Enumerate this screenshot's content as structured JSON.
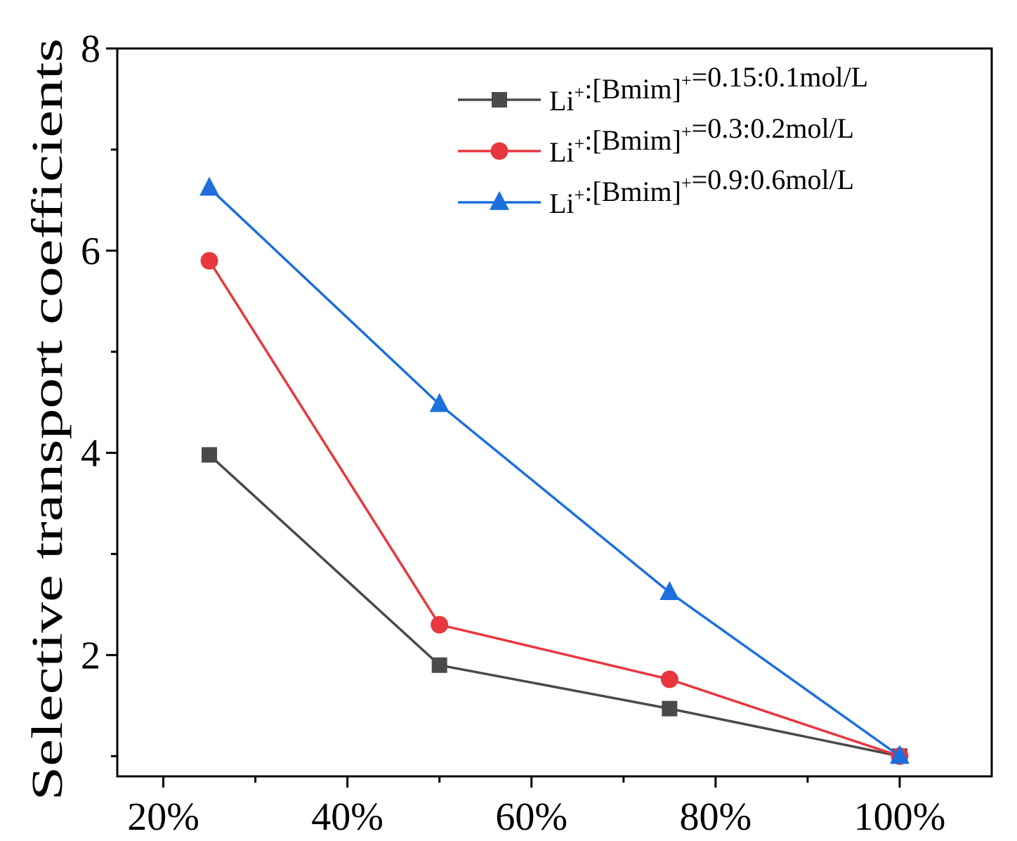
{
  "chart_data": {
    "type": "line",
    "title": "",
    "xlabel": "",
    "ylabel": "Selective transport coefficients",
    "x": [
      25,
      50,
      75,
      100
    ],
    "xlim": [
      15,
      110
    ],
    "xticks": [
      20,
      40,
      60,
      80,
      100
    ],
    "xtick_labels": [
      "20%",
      "40%",
      "60%",
      "80%",
      "100%"
    ],
    "ylim": [
      0.8,
      8
    ],
    "yticks": [
      2,
      4,
      6,
      8
    ],
    "ytick_labels": [
      "2",
      "4",
      "6",
      "8"
    ],
    "grid": false,
    "legend_position": "top-right",
    "series": [
      {
        "name": "Li+:[Bmim]+=0.15:0.1mol/L",
        "legend": {
          "prefix": "Li",
          "sup1": "+",
          "mid": ":[Bmim]",
          "sup2": "+",
          "suffix": "=0.15:0.1mol/L"
        },
        "marker": "square",
        "color": "#4a4a4a",
        "values": [
          3.98,
          1.9,
          1.47,
          1.0
        ]
      },
      {
        "name": "Li+:[Bmim]+=0.3:0.2mol/L",
        "legend": {
          "prefix": "Li",
          "sup1": "+",
          "mid": ":[Bmim]",
          "sup2": "+",
          "suffix": "=0.3:0.2mol/L"
        },
        "marker": "circle",
        "color": "#e8373e",
        "values": [
          5.9,
          2.3,
          1.76,
          1.0
        ]
      },
      {
        "name": "Li+:[Bmim]+=0.9:0.6mol/L",
        "legend": {
          "prefix": "Li",
          "sup1": "+",
          "mid": ":[Bmim]",
          "sup2": "+",
          "suffix": "=0.9:0.6mol/L"
        },
        "marker": "triangle",
        "color": "#1d6fdc",
        "values": [
          6.62,
          4.48,
          2.62,
          1.0
        ]
      }
    ]
  }
}
